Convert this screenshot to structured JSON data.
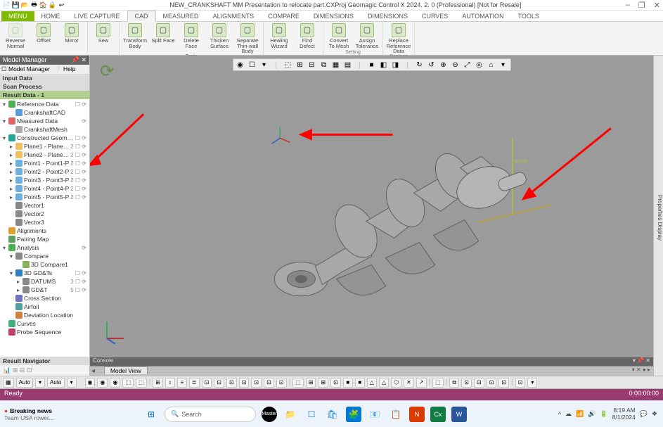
{
  "title": "NEW_CRANKSHAFT MM Presentation to relocate part.CXProj      Geomagic Control X 2024. 2. 0 (Professional) [Not for Resale]",
  "qat_icons": [
    "📄",
    "💾",
    "📂",
    "🖶",
    "🏠",
    "🔒",
    "↩"
  ],
  "window_controls": [
    "–",
    "❐",
    "✕"
  ],
  "tabs": {
    "menu": "MENU",
    "items": [
      "HOME",
      "LIVE CAPTURE",
      "CAD",
      "MEASURED",
      "ALIGNMENTS",
      "COMPARE",
      "DIMENSIONS",
      "DIMENSIONS",
      "CURVES",
      "AUTOMATION",
      "TOOLS"
    ],
    "active_index": 2
  },
  "ribbon": [
    {
      "label": "",
      "buttons": [
        {
          "t": "Reverse Normal",
          "d": true
        },
        {
          "t": "Offset"
        },
        {
          "t": "Mirror"
        }
      ]
    },
    {
      "label": "",
      "buttons": [
        {
          "t": "Sew"
        }
      ]
    },
    {
      "label": "Tools",
      "buttons": [
        {
          "t": "Transform Body"
        },
        {
          "t": "Split Face"
        },
        {
          "t": "Delete Face"
        },
        {
          "t": "Thicken Surface"
        },
        {
          "t": "Separate Thin-wall Body"
        }
      ]
    },
    {
      "label": "",
      "buttons": [
        {
          "t": "Healing Wizard"
        },
        {
          "t": "Find Defect"
        }
      ]
    },
    {
      "label": "Setting",
      "buttons": [
        {
          "t": "Convert To Mesh"
        },
        {
          "t": "Assign Tolerance"
        }
      ]
    },
    {
      "label": "Replace",
      "buttons": [
        {
          "t": "Replace Reference Data"
        }
      ]
    }
  ],
  "panel": {
    "title": "Model Manager",
    "tabs": [
      "Model Manager",
      "Help"
    ],
    "sections": [
      "Input Data",
      "Scan Process"
    ],
    "result_hdr": "Result Data - 1",
    "nav_hdr": "Result Navigator",
    "tree": [
      {
        "d": 0,
        "e": "▾",
        "c": "#4caf50",
        "lbl": "Reference Data",
        "tail": "☐ ⟳"
      },
      {
        "d": 1,
        "e": "",
        "c": "#5aa0d8",
        "lbl": "CrankshaftCAD",
        "tail": ""
      },
      {
        "d": 0,
        "e": "▾",
        "c": "#e06666",
        "lbl": "Measured Data",
        "tail": "⟳"
      },
      {
        "d": 1,
        "e": "",
        "c": "#aaa",
        "lbl": "CrankshaftMesh",
        "tail": ""
      },
      {
        "d": 0,
        "e": "▾",
        "c": "#26a69a",
        "lbl": "Constructed Geometries",
        "tail": "☐ ⟳"
      },
      {
        "d": 1,
        "e": "▸",
        "c": "#f0c060",
        "lbl": "Plane1 - Plane1-P",
        "tail": "2 ☐ ⟳"
      },
      {
        "d": 1,
        "e": "▸",
        "c": "#f0c060",
        "lbl": "Plane2 - Plane2-P",
        "tail": "2 ☐ ⟳"
      },
      {
        "d": 1,
        "e": "▸",
        "c": "#6ab0e0",
        "lbl": "Point1 - Point1-P",
        "tail": "2 ☐ ⟳"
      },
      {
        "d": 1,
        "e": "▸",
        "c": "#6ab0e0",
        "lbl": "Point2 - Point2-P",
        "tail": "2 ☐ ⟳"
      },
      {
        "d": 1,
        "e": "▸",
        "c": "#6ab0e0",
        "lbl": "Point3 - Point3-P",
        "tail": "2 ☐ ⟳"
      },
      {
        "d": 1,
        "e": "▸",
        "c": "#6ab0e0",
        "lbl": "Point4 - Point4-P",
        "tail": "2 ☐ ⟳"
      },
      {
        "d": 1,
        "e": "▸",
        "c": "#6ab0e0",
        "lbl": "Point5 - Point5-P",
        "tail": "2 ☐ ⟳"
      },
      {
        "d": 1,
        "e": "",
        "c": "#888",
        "lbl": "Vector1",
        "tail": ""
      },
      {
        "d": 1,
        "e": "",
        "c": "#888",
        "lbl": "Vector2",
        "tail": ""
      },
      {
        "d": 1,
        "e": "",
        "c": "#888",
        "lbl": "Vector3",
        "tail": ""
      },
      {
        "d": 0,
        "e": "",
        "c": "#e0a030",
        "lbl": "Alignments",
        "tail": ""
      },
      {
        "d": 0,
        "e": "",
        "c": "#60a060",
        "lbl": "Pairing Map",
        "tail": ""
      },
      {
        "d": 0,
        "e": "▾",
        "c": "#4caf50",
        "lbl": "Analysis",
        "tail": "⟳"
      },
      {
        "d": 1,
        "e": "▾",
        "c": "#888",
        "lbl": "Compare",
        "tail": ""
      },
      {
        "d": 2,
        "e": "",
        "c": "#8ab060",
        "lbl": "3D Compare1",
        "tail": ""
      },
      {
        "d": 1,
        "e": "▾",
        "c": "#3080c0",
        "lbl": "3D GD&Ts",
        "tail": "☐ ⟳"
      },
      {
        "d": 2,
        "e": "▸",
        "c": "#888",
        "lbl": "DATUMS",
        "tail": "3 ☐ ⟳"
      },
      {
        "d": 2,
        "e": "▸",
        "c": "#888",
        "lbl": "GD&T",
        "tail": "5 ☐ ⟳"
      },
      {
        "d": 1,
        "e": "",
        "c": "#7070c0",
        "lbl": "Cross Section",
        "tail": ""
      },
      {
        "d": 1,
        "e": "",
        "c": "#50a0a0",
        "lbl": "Airfoil",
        "tail": ""
      },
      {
        "d": 1,
        "e": "",
        "c": "#d08040",
        "lbl": "Deviation Location",
        "tail": ""
      },
      {
        "d": 0,
        "e": "",
        "c": "#40b080",
        "lbl": "Curves",
        "tail": ""
      },
      {
        "d": 0,
        "e": "",
        "c": "#c04060",
        "lbl": "Probe Sequence",
        "tail": ""
      }
    ]
  },
  "right_strip": "Properties   Display",
  "vp_tab": "Model View",
  "vp_console": "Console",
  "vp_toolbar": [
    "◉",
    "☐",
    "▾",
    "|",
    "⬚",
    "⊞",
    "⊟",
    "⧉",
    "▦",
    "▤",
    "|",
    "■",
    "◧",
    "◨",
    "|",
    "↻",
    "↺",
    "⊕",
    "⊖",
    "⤢",
    "◎",
    "⌂",
    "▾"
  ],
  "sel_bar": {
    "left": [
      "▦",
      "Auto",
      "▾",
      "Auto",
      "▾"
    ],
    "mid": [
      "◉",
      "◉",
      "◉",
      "⬚",
      "⬚",
      "|",
      "⊞",
      "↕",
      "≡",
      "≣",
      "⊡",
      "⊡",
      "⊡",
      "⊡",
      "⊡",
      "⊡",
      "⊡",
      "|",
      "⬚",
      "⊞",
      "⊞",
      "⊡",
      "■",
      "■",
      "△",
      "△",
      "⬡",
      "✕",
      "↗",
      "|",
      "⬚",
      "|",
      "⧉",
      "⊡",
      "⊡",
      "⊡",
      "⊡",
      "|",
      "⊡",
      "▾"
    ]
  },
  "status": {
    "left": "Ready",
    "right": "0:00:00:00"
  },
  "taskbar": {
    "news_badge": "●",
    "news_title": "Breaking news",
    "news_sub": "Team USA rower...",
    "search_placeholder": "Search",
    "tray": [
      "^",
      "☁",
      "📶",
      "🔊",
      "🔋"
    ],
    "time": "8:19 AM",
    "date": "8/1/2024"
  },
  "colors": {
    "arrow": "#ff0000",
    "axis_y": "#b0c040",
    "axis_x": "#c0a030",
    "model_fill": "#a8a8a8",
    "model_stroke": "#606060"
  }
}
